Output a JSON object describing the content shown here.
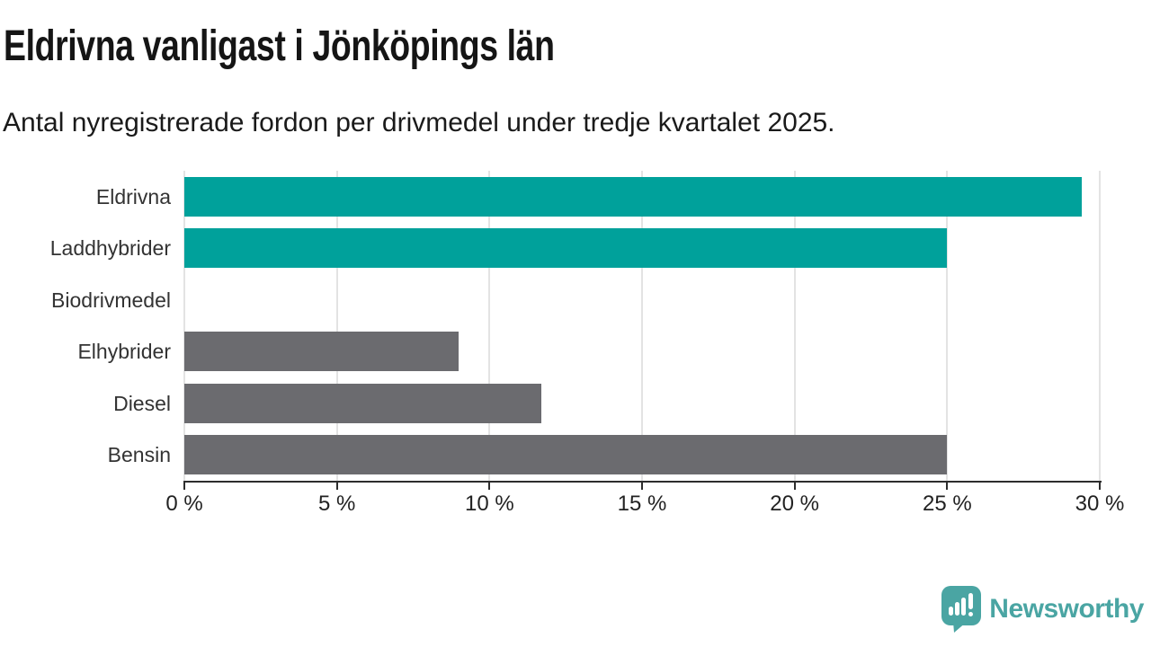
{
  "header": {
    "title": "Eldrivna vanligast i Jönköpings län",
    "subtitle": "Antal nyregistrerade fordon per drivmedel under tredje kvartalet 2025."
  },
  "chart_data": {
    "type": "bar",
    "orientation": "horizontal",
    "title": "Eldrivna vanligast i Jönköpings län",
    "subtitle": "Antal nyregistrerade fordon per drivmedel under tredje kvartalet 2025.",
    "categories": [
      "Eldrivna",
      "Laddhybrider",
      "Biodrivmedel",
      "Elhybrider",
      "Diesel",
      "Bensin"
    ],
    "values": [
      29.4,
      25.0,
      0,
      9.0,
      11.7,
      25.0
    ],
    "unit": "%",
    "colors": [
      "#00a19b",
      "#00a19b",
      "#6b6b6f",
      "#6b6b6f",
      "#6b6b6f",
      "#6b6b6f"
    ],
    "xlabel": "",
    "ylabel": "",
    "xlim": [
      0,
      30
    ],
    "xtick_values": [
      0,
      5,
      10,
      15,
      20,
      25,
      30
    ],
    "xtick_labels": [
      "0 %",
      "5 %",
      "10 %",
      "15 %",
      "20 %",
      "25 %",
      "30 %"
    ],
    "grid": true,
    "legend": "none"
  },
  "colors": {
    "accent_teal": "#00a19b",
    "neutral_gray": "#6b6b6f",
    "gridline": "#e3e3e3",
    "axis": "#2d2d2d",
    "brand_teal": "#4aa5a3"
  },
  "brand": {
    "name": "Newsworthy",
    "icon": "newsworthy-speech-bubble-barchart-icon"
  }
}
